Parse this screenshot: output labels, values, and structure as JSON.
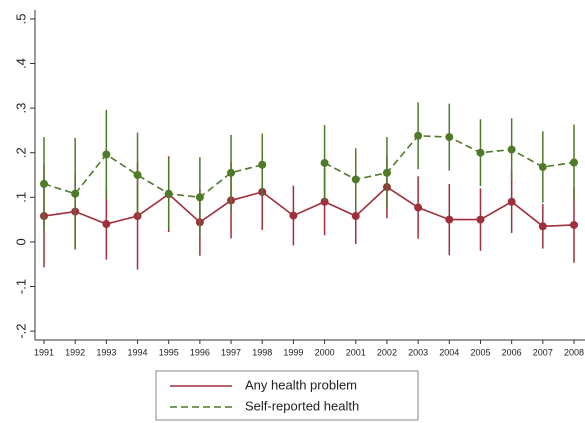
{
  "chart_data": {
    "type": "line",
    "categories": [
      "1991",
      "1992",
      "1993",
      "1994",
      "1995",
      "1996",
      "1997",
      "1998",
      "1999",
      "2000",
      "2001",
      "2002",
      "2003",
      "2004",
      "2005",
      "2006",
      "2007",
      "2008"
    ],
    "series": [
      {
        "name": "Any health problem",
        "color": "#9e2f3b",
        "dash": false,
        "values": [
          0.058,
          0.068,
          0.04,
          0.058,
          0.107,
          0.044,
          0.093,
          0.112,
          0.059,
          0.09,
          0.058,
          0.123,
          0.077,
          0.05,
          0.05,
          0.09,
          0.035,
          0.038
        ],
        "errors": [
          0.115,
          0.085,
          0.08,
          0.12,
          0.085,
          0.075,
          0.085,
          0.085,
          0.067,
          0.075,
          0.063,
          0.07,
          0.07,
          0.08,
          0.07,
          0.07,
          0.05,
          0.085
        ]
      },
      {
        "name": "Self-reported health",
        "color": "#4f7a28",
        "dash": true,
        "values": [
          0.13,
          0.108,
          0.196,
          0.15,
          0.108,
          0.1,
          0.155,
          0.173,
          null,
          0.177,
          0.14,
          0.155,
          0.238,
          0.235,
          0.2,
          0.207,
          0.168,
          0.178
        ],
        "errors": [
          0.105,
          0.125,
          0.1,
          0.095,
          0.08,
          0.09,
          0.085,
          0.07,
          null,
          0.085,
          0.07,
          0.08,
          0.075,
          0.075,
          0.075,
          0.07,
          0.08,
          0.085
        ]
      }
    ],
    "ylim": [
      -0.22,
      0.52
    ],
    "yticks": [
      {
        "value": -0.2,
        "label": "-.2"
      },
      {
        "value": -0.1,
        "label": "-.1"
      },
      0,
      {
        "value": 0.1,
        "label": ".1"
      },
      {
        "value": 0.2,
        "label": ".2"
      },
      {
        "value": 0.3,
        "label": ".3"
      },
      {
        "value": 0.4,
        "label": ".4"
      },
      {
        "value": 0.5,
        "label": ".5"
      }
    ],
    "grid": false,
    "legend": "bottom"
  }
}
